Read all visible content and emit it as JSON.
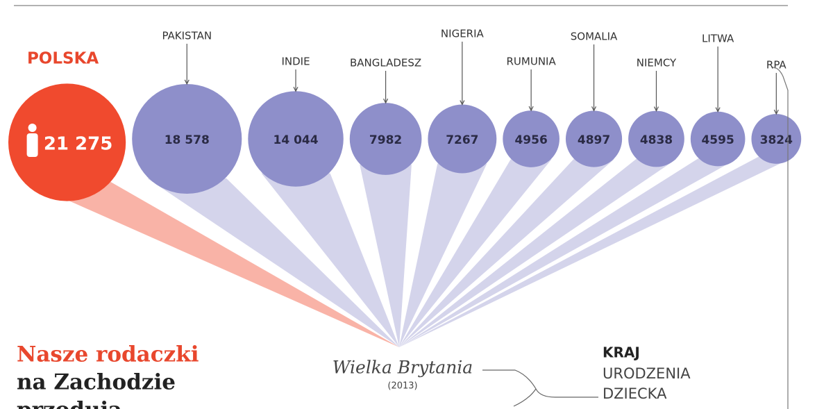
{
  "chart_data": {
    "type": "bubble",
    "categories": [
      "POLSKA",
      "PAKISTAN",
      "INDIE",
      "BANGLADESZ",
      "NIGERIA",
      "RUMUNIA",
      "SOMALIA",
      "NIEMCY",
      "LITWA",
      "RPA"
    ],
    "values": [
      21275,
      18578,
      14044,
      7982,
      7267,
      4956,
      4897,
      4838,
      4595,
      3824
    ],
    "value_labels": [
      "21 275",
      "18 578",
      "14 044",
      "7982",
      "7267",
      "4956",
      "4897",
      "4838",
      "4595",
      "3824"
    ],
    "colors": [
      "#f04a2e",
      "#8e8fca",
      "#8e8fca",
      "#8e8fca",
      "#8e8fca",
      "#8e8fca",
      "#8e8fca",
      "#8e8fca",
      "#8e8fca",
      "#8e8fca"
    ],
    "title_lines": [
      "Nasze rodaczki",
      "na Zachodzie",
      "przodują"
    ],
    "origin": "Wielka Brytania",
    "origin_year": "(2013)",
    "legend_lines": [
      "KRAJ",
      "URODZENIA",
      "DZIECKA"
    ]
  }
}
